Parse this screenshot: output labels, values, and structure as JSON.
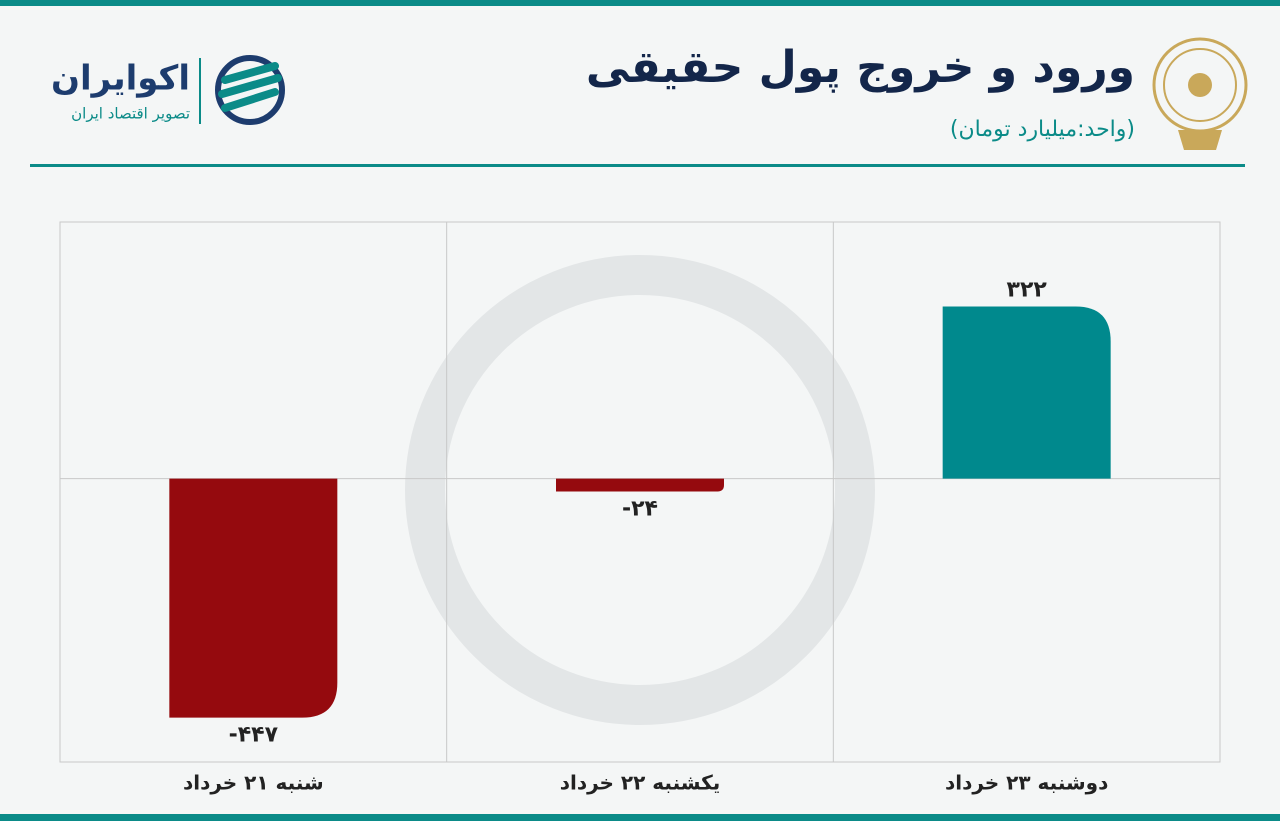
{
  "chart_data": {
    "type": "bar",
    "title": "ورود و خروج پول حقیقی",
    "subtitle": "(واحد:میلیارد تومان)",
    "brand": "اکوایران",
    "brand_tagline": "تصویر اقتصاد ایران",
    "categories": [
      "شنبه ۲۱ خرداد",
      "یکشنبه ۲۲ خرداد",
      "دوشنبه ۲۳ خرداد"
    ],
    "values": [
      -447,
      -24,
      322
    ],
    "value_labels": [
      "-۴۴۷",
      "-۲۴",
      "۳۲۲"
    ],
    "colors": [
      "#950a0e",
      "#950a0e",
      "#00898d"
    ],
    "ylim": [
      -530,
      480
    ]
  }
}
